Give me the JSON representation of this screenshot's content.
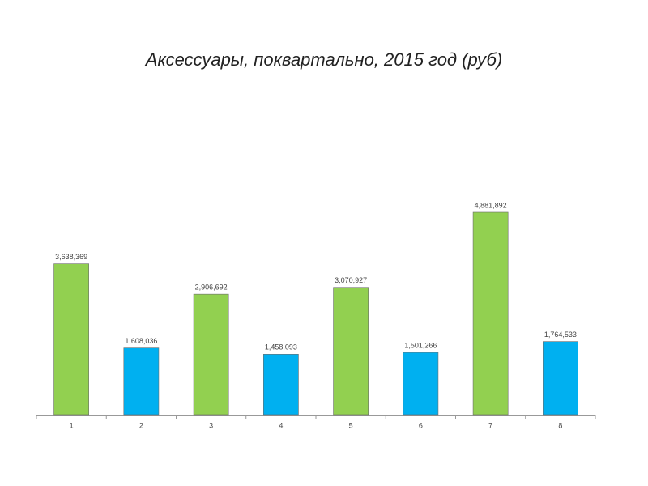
{
  "chart_data": {
    "type": "bar",
    "title": "Аксессуары, поквартально, 2015 год (руб)",
    "categories": [
      "1",
      "2",
      "3",
      "4",
      "5",
      "6",
      "7",
      "8"
    ],
    "values": [
      3638369,
      1608036,
      2906692,
      1458093,
      3070927,
      1501266,
      4881892,
      1764533
    ],
    "value_labels": [
      "3,638,369",
      "1,608,036",
      "2,906,692",
      "1,458,093",
      "3,070,927",
      "1,501,266",
      "4,881,892",
      "1,764,533"
    ],
    "colors": [
      "#92d050",
      "#00b0f0",
      "#92d050",
      "#00b0f0",
      "#92d050",
      "#00b0f0",
      "#92d050",
      "#00b0f0"
    ]
  }
}
